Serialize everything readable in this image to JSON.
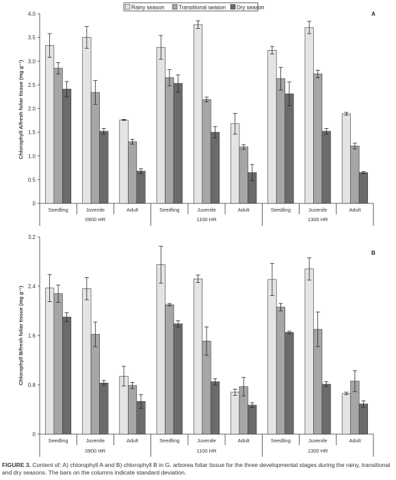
{
  "legend": [
    {
      "label": "Rainy season",
      "color": "#e4e4e4"
    },
    {
      "label": "Transitional season",
      "color": "#a6a6a6"
    },
    {
      "label": "Dry season",
      "color": "#6b6b6b"
    }
  ],
  "caption": {
    "prefix": "FIGURE 3.",
    "text": " Content of: A) chlorophyll A and B) chlorophyll B in G. arborea foliar tissue for the three developmental stages during the rainy, transitional and dry seasons. The bars on the columns indicate standard deviation."
  },
  "chart_data": [
    {
      "type": "bar",
      "panel": "A",
      "ylabel": "Chlorophyll A/fresh foliar tissue (mg g⁻¹)",
      "ylim": [
        0,
        4.0
      ],
      "yticks": [
        "0",
        "0.5",
        "1.0",
        "1.5",
        "2.0",
        "2.5",
        "3.0",
        "3.5",
        "4.0"
      ],
      "categories": [
        "Seedling",
        "Juvenile",
        "Adult",
        "Seedling",
        "Juvenile",
        "Adult",
        "Seedling",
        "Juvenile",
        "Adult"
      ],
      "groups": [
        "0900 HR",
        "1100 HR",
        "1300 HR"
      ],
      "series": [
        {
          "name": "Rainy season",
          "values": [
            3.33,
            3.5,
            1.76,
            3.29,
            3.77,
            1.68,
            3.23,
            3.71,
            1.89
          ],
          "errors": [
            0.25,
            0.23,
            0.01,
            0.25,
            0.08,
            0.22,
            0.08,
            0.13,
            0.03
          ]
        },
        {
          "name": "Transitional season",
          "values": [
            2.85,
            2.34,
            1.3,
            2.65,
            2.19,
            1.19,
            2.63,
            2.73,
            1.21
          ],
          "errors": [
            0.12,
            0.25,
            0.05,
            0.17,
            0.05,
            0.05,
            0.24,
            0.08,
            0.06
          ]
        },
        {
          "name": "Dry season",
          "values": [
            2.41,
            1.52,
            0.68,
            2.53,
            1.5,
            0.65,
            2.31,
            1.52,
            0.65
          ],
          "errors": [
            0.16,
            0.06,
            0.05,
            0.18,
            0.12,
            0.17,
            0.25,
            0.06,
            0.02
          ]
        }
      ]
    },
    {
      "type": "bar",
      "panel": "B",
      "ylabel": "Chlorophyll B/fresh foliar tissue (mg g⁻¹)",
      "ylim": [
        0,
        3.2
      ],
      "yticks": [
        "0",
        "0.8",
        "1.6",
        "2.4",
        "3.2"
      ],
      "categories": [
        "Seedling",
        "Juvenile",
        "Adult",
        "Seedling",
        "Juvenile",
        "Adult",
        "Seedling",
        "Juvenile",
        "Adult"
      ],
      "groups": [
        "0900 HR",
        "1100 HR",
        "1300 HR"
      ],
      "series": [
        {
          "name": "Rainy season",
          "values": [
            2.37,
            2.36,
            0.94,
            2.75,
            2.52,
            0.68,
            2.51,
            2.68,
            0.66
          ],
          "errors": [
            0.22,
            0.18,
            0.16,
            0.3,
            0.06,
            0.05,
            0.26,
            0.18,
            0.02
          ]
        },
        {
          "name": "Transitional season",
          "values": [
            2.28,
            1.62,
            0.79,
            2.1,
            1.51,
            0.77,
            2.06,
            1.7,
            0.86
          ],
          "errors": [
            0.14,
            0.2,
            0.05,
            0.02,
            0.23,
            0.15,
            0.06,
            0.28,
            0.17
          ]
        },
        {
          "name": "Dry season",
          "values": [
            1.9,
            0.83,
            0.53,
            1.79,
            0.85,
            0.47,
            1.65,
            0.81,
            0.49
          ],
          "errors": [
            0.07,
            0.04,
            0.11,
            0.05,
            0.05,
            0.04,
            0.02,
            0.04,
            0.05
          ]
        }
      ]
    }
  ]
}
